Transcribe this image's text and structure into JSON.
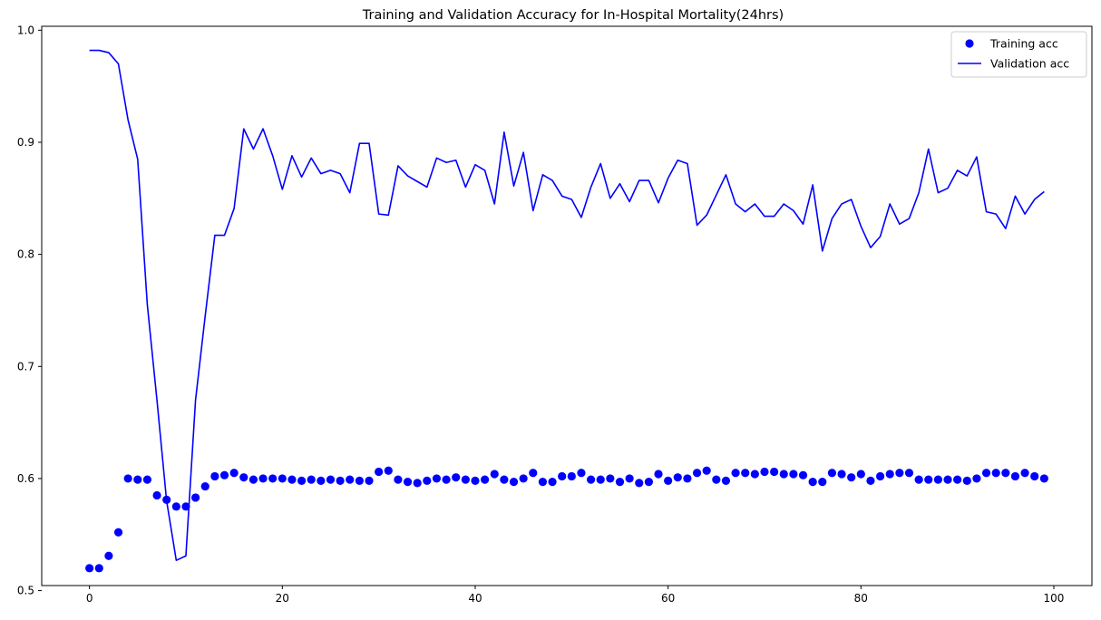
{
  "chart_data": {
    "type": "line",
    "title": "Training and Validation Accuracy for In-Hospital Mortality(24hrs)",
    "xlabel": "",
    "ylabel": "",
    "xlim": [
      -4.95,
      103.95
    ],
    "ylim": [
      0.5045,
      1.0035
    ],
    "xticks": [
      0,
      20,
      40,
      60,
      80,
      100
    ],
    "xtick_labels": [
      "0",
      "20",
      "40",
      "60",
      "80",
      "100"
    ],
    "yticks": [
      0.5,
      0.6,
      0.7,
      0.8,
      0.9,
      1.0
    ],
    "ytick_labels": [
      "0.5",
      "0.6",
      "0.7",
      "0.8",
      "0.9",
      "1.0"
    ],
    "grid": false,
    "legend_position": "top-right",
    "colors": {
      "training": "#0000ff",
      "validation": "#0000ff"
    },
    "series": [
      {
        "name": "Training acc",
        "style": "scatter",
        "values": [
          0.52,
          0.52,
          0.531,
          0.552,
          0.6,
          0.599,
          0.599,
          0.585,
          0.581,
          0.575,
          0.575,
          0.583,
          0.593,
          0.602,
          0.603,
          0.605,
          0.601,
          0.599,
          0.6,
          0.6,
          0.6,
          0.599,
          0.598,
          0.599,
          0.598,
          0.599,
          0.598,
          0.599,
          0.598,
          0.598,
          0.606,
          0.607,
          0.599,
          0.597,
          0.596,
          0.598,
          0.6,
          0.599,
          0.601,
          0.599,
          0.598,
          0.599,
          0.604,
          0.599,
          0.597,
          0.6,
          0.605,
          0.597,
          0.597,
          0.602,
          0.602,
          0.605,
          0.599,
          0.599,
          0.6,
          0.597,
          0.6,
          0.596,
          0.597,
          0.604,
          0.598,
          0.601,
          0.6,
          0.605,
          0.607,
          0.599,
          0.598,
          0.605,
          0.605,
          0.604,
          0.606,
          0.606,
          0.604,
          0.604,
          0.603,
          0.597,
          0.597,
          0.605,
          0.604,
          0.601,
          0.604,
          0.598,
          0.602,
          0.604,
          0.605,
          0.605,
          0.599,
          0.599,
          0.599,
          0.599,
          0.599,
          0.598,
          0.6,
          0.605,
          0.605,
          0.605,
          0.602,
          0.605,
          0.602,
          0.6
        ]
      },
      {
        "name": "Validation acc",
        "style": "line",
        "values": [
          0.982,
          0.982,
          0.98,
          0.97,
          0.92,
          0.885,
          0.755,
          0.67,
          0.58,
          0.527,
          0.531,
          0.67,
          0.745,
          0.817,
          0.817,
          0.841,
          0.912,
          0.894,
          0.912,
          0.888,
          0.858,
          0.888,
          0.869,
          0.886,
          0.872,
          0.875,
          0.872,
          0.855,
          0.899,
          0.899,
          0.836,
          0.835,
          0.879,
          0.87,
          0.865,
          0.86,
          0.886,
          0.882,
          0.884,
          0.86,
          0.88,
          0.875,
          0.845,
          0.909,
          0.861,
          0.891,
          0.839,
          0.871,
          0.866,
          0.852,
          0.849,
          0.833,
          0.86,
          0.881,
          0.85,
          0.863,
          0.847,
          0.866,
          0.866,
          0.846,
          0.868,
          0.884,
          0.881,
          0.826,
          0.835,
          0.853,
          0.871,
          0.845,
          0.838,
          0.845,
          0.834,
          0.834,
          0.845,
          0.839,
          0.827,
          0.862,
          0.803,
          0.832,
          0.845,
          0.849,
          0.825,
          0.806,
          0.816,
          0.845,
          0.827,
          0.832,
          0.855,
          0.894,
          0.855,
          0.859,
          0.875,
          0.87,
          0.887,
          0.838,
          0.836,
          0.823,
          0.852,
          0.836,
          0.849,
          0.856
        ]
      }
    ]
  }
}
